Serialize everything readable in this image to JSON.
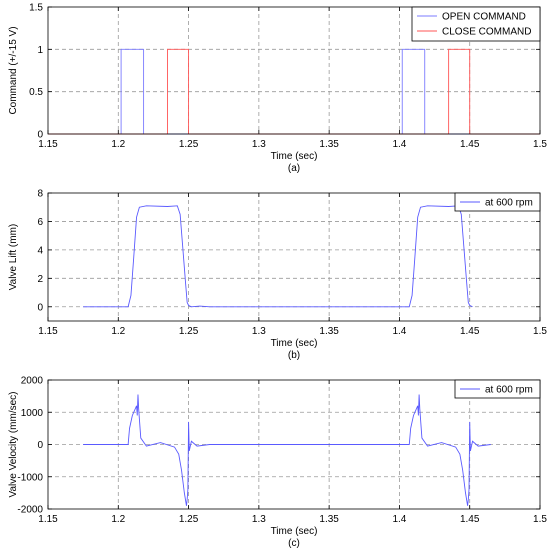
{
  "chart_data": [
    {
      "type": "line",
      "xlabel": "Time (sec)",
      "ylabel": "Command (+/-15 V)",
      "caption": "(a)",
      "xlim": [
        1.15,
        1.5
      ],
      "ylim": [
        0,
        1.5
      ],
      "xticks": [
        "1.15",
        "1.2",
        "1.25",
        "1.3",
        "1.35",
        "1.4",
        "1.45",
        "1.5"
      ],
      "yticks": [
        "0",
        "0.5",
        "1",
        "1.5"
      ],
      "grid": true,
      "legend_position": "top-right",
      "series": [
        {
          "name": "OPEN COMMAND",
          "color": "#7b7bff",
          "points": [
            [
              1.15,
              0
            ],
            [
              1.202,
              0
            ],
            [
              1.202,
              1
            ],
            [
              1.218,
              1
            ],
            [
              1.218,
              0
            ],
            [
              1.402,
              0
            ],
            [
              1.402,
              1
            ],
            [
              1.418,
              1
            ],
            [
              1.418,
              0
            ],
            [
              1.5,
              0
            ]
          ]
        },
        {
          "name": "CLOSE COMMAND",
          "color": "#ff5555",
          "points": [
            [
              1.15,
              0
            ],
            [
              1.235,
              0
            ],
            [
              1.235,
              1
            ],
            [
              1.25,
              1
            ],
            [
              1.25,
              0
            ],
            [
              1.435,
              0
            ],
            [
              1.435,
              1
            ],
            [
              1.45,
              1
            ],
            [
              1.45,
              0
            ],
            [
              1.5,
              0
            ]
          ]
        }
      ]
    },
    {
      "type": "line",
      "xlabel": "Time (sec)",
      "ylabel": "Valve Lift (mm)",
      "caption": "(b)",
      "xlim": [
        1.15,
        1.5
      ],
      "ylim": [
        -1,
        8
      ],
      "xticks": [
        "1.15",
        "1.2",
        "1.25",
        "1.3",
        "1.35",
        "1.4",
        "1.45",
        "1.5"
      ],
      "yticks": [
        "0",
        "2",
        "4",
        "6",
        "8"
      ],
      "grid": true,
      "legend_position": "top-right",
      "series": [
        {
          "name": "at 600 rpm",
          "color": "#5a5aff",
          "points": [
            [
              1.175,
              0
            ],
            [
              1.207,
              0
            ],
            [
              1.209,
              0.8
            ],
            [
              1.211,
              3.5
            ],
            [
              1.213,
              6.3
            ],
            [
              1.215,
              7.0
            ],
            [
              1.22,
              7.1
            ],
            [
              1.235,
              7.05
            ],
            [
              1.242,
              7.1
            ],
            [
              1.244,
              6.5
            ],
            [
              1.246,
              4
            ],
            [
              1.248,
              1.5
            ],
            [
              1.249,
              0.3
            ],
            [
              1.25,
              0.1
            ],
            [
              1.252,
              0
            ],
            [
              1.258,
              0.05
            ],
            [
              1.265,
              0
            ],
            [
              1.407,
              0
            ],
            [
              1.409,
              0.8
            ],
            [
              1.411,
              3.5
            ],
            [
              1.413,
              6.3
            ],
            [
              1.415,
              7.0
            ],
            [
              1.42,
              7.1
            ],
            [
              1.435,
              7.05
            ],
            [
              1.442,
              7.1
            ],
            [
              1.444,
              6.5
            ],
            [
              1.446,
              4
            ],
            [
              1.448,
              1.5
            ],
            [
              1.449,
              0.3
            ],
            [
              1.45,
              0.1
            ],
            [
              1.452,
              0
            ]
          ]
        }
      ]
    },
    {
      "type": "line",
      "xlabel": "Time (sec)",
      "ylabel": "Valve Velocity (mm/sec)",
      "caption": "(c)",
      "xlim": [
        1.15,
        1.5
      ],
      "ylim": [
        -2000,
        2000
      ],
      "xticks": [
        "1.15",
        "1.2",
        "1.25",
        "1.3",
        "1.35",
        "1.4",
        "1.45",
        "1.5"
      ],
      "yticks": [
        "-2000",
        "-1000",
        "0",
        "1000",
        "2000"
      ],
      "grid": true,
      "legend_position": "top-right",
      "series": [
        {
          "name": "at 600 rpm",
          "color": "#5a5aff",
          "points": [
            [
              1.175,
              0
            ],
            [
              1.207,
              0
            ],
            [
              1.208,
              500
            ],
            [
              1.21,
              900
            ],
            [
              1.212,
              1100
            ],
            [
              1.213,
              1200
            ],
            [
              1.2135,
              900
            ],
            [
              1.214,
              1550
            ],
            [
              1.2145,
              1100
            ],
            [
              1.215,
              800
            ],
            [
              1.216,
              200
            ],
            [
              1.22,
              -50
            ],
            [
              1.23,
              60
            ],
            [
              1.24,
              -80
            ],
            [
              1.243,
              -300
            ],
            [
              1.245,
              -800
            ],
            [
              1.247,
              -1500
            ],
            [
              1.2485,
              -1900
            ],
            [
              1.249,
              -1700
            ],
            [
              1.2495,
              -1400
            ],
            [
              1.25,
              700
            ],
            [
              1.2505,
              -200
            ],
            [
              1.252,
              100
            ],
            [
              1.256,
              -50
            ],
            [
              1.265,
              0
            ],
            [
              1.407,
              0
            ],
            [
              1.408,
              500
            ],
            [
              1.41,
              900
            ],
            [
              1.412,
              1100
            ],
            [
              1.413,
              1200
            ],
            [
              1.4135,
              900
            ],
            [
              1.414,
              1550
            ],
            [
              1.4145,
              1100
            ],
            [
              1.415,
              800
            ],
            [
              1.416,
              200
            ],
            [
              1.42,
              -50
            ],
            [
              1.43,
              60
            ],
            [
              1.44,
              -80
            ],
            [
              1.443,
              -300
            ],
            [
              1.445,
              -800
            ],
            [
              1.447,
              -1500
            ],
            [
              1.4485,
              -1900
            ],
            [
              1.449,
              -1700
            ],
            [
              1.4495,
              -1400
            ],
            [
              1.45,
              700
            ],
            [
              1.4505,
              -200
            ],
            [
              1.452,
              100
            ],
            [
              1.456,
              -50
            ],
            [
              1.465,
              0
            ]
          ]
        }
      ]
    }
  ]
}
